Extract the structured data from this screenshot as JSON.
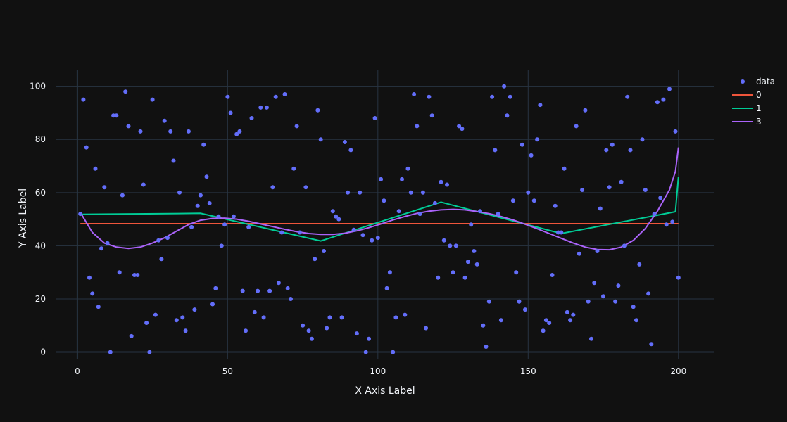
{
  "chart_data": {
    "type": "scatter",
    "title": "",
    "xlabel": "X Axis Label",
    "ylabel": "Y Axis Label",
    "xlim": [
      -7,
      212
    ],
    "ylim": [
      -2.5,
      106
    ],
    "x_ticks": [
      0,
      50,
      100,
      150,
      200
    ],
    "y_ticks": [
      0,
      20,
      40,
      60,
      80,
      100
    ],
    "grid": true,
    "legend_position": "top-right",
    "colors": {
      "background": "#111111",
      "grid": "#283442",
      "zeroline": "#283442",
      "text": "#f2f5fa"
    },
    "series": [
      {
        "name": "data",
        "mode": "markers",
        "color": "#636efa",
        "x": [
          1,
          2,
          3,
          4,
          5,
          6,
          7,
          8,
          9,
          10,
          11,
          12,
          13,
          14,
          15,
          16,
          17,
          18,
          19,
          20,
          21,
          22,
          23,
          24,
          25,
          26,
          27,
          28,
          29,
          30,
          31,
          32,
          33,
          34,
          35,
          36,
          37,
          38,
          39,
          40,
          41,
          42,
          43,
          44,
          45,
          46,
          47,
          48,
          49,
          50,
          51,
          52,
          53,
          54,
          55,
          56,
          57,
          58,
          59,
          60,
          61,
          62,
          63,
          64,
          65,
          66,
          67,
          68,
          69,
          70,
          71,
          72,
          73,
          74,
          75,
          76,
          77,
          78,
          79,
          80,
          81,
          82,
          83,
          84,
          85,
          86,
          87,
          88,
          89,
          90,
          91,
          92,
          93,
          94,
          95,
          96,
          97,
          98,
          99,
          100,
          101,
          102,
          103,
          104,
          105,
          106,
          107,
          108,
          109,
          110,
          111,
          112,
          113,
          114,
          115,
          116,
          117,
          118,
          119,
          120,
          121,
          122,
          123,
          124,
          125,
          126,
          127,
          128,
          129,
          130,
          131,
          132,
          133,
          134,
          135,
          136,
          137,
          138,
          139,
          140,
          141,
          142,
          143,
          144,
          145,
          146,
          147,
          148,
          149,
          150,
          151,
          152,
          153,
          154,
          155,
          156,
          157,
          158,
          159,
          160,
          161,
          162,
          163,
          164,
          165,
          166,
          167,
          168,
          169,
          170,
          171,
          172,
          173,
          174,
          175,
          176,
          177,
          178,
          179,
          180,
          181,
          182,
          183,
          184,
          185,
          186,
          187,
          188,
          189,
          190,
          191,
          192,
          193,
          194,
          195,
          196,
          197,
          198,
          199,
          200
        ],
        "y": [
          52,
          95,
          77,
          28,
          22,
          69,
          17,
          39,
          62,
          41,
          0,
          89,
          89,
          30,
          59,
          98,
          85,
          6,
          29,
          29,
          83,
          63,
          11,
          0,
          95,
          14,
          42,
          35,
          87,
          43,
          83,
          72,
          12,
          60,
          13,
          8,
          83,
          47,
          16,
          55,
          59,
          78,
          66,
          56,
          18,
          24,
          51,
          40,
          48,
          96,
          90,
          51,
          82,
          83,
          23,
          8,
          47,
          88,
          15,
          23,
          92,
          13,
          92,
          23,
          62,
          96,
          26,
          45,
          97,
          24,
          20,
          69,
          85,
          45,
          10,
          62,
          8,
          5,
          35,
          91,
          80,
          38,
          9,
          13,
          53,
          51,
          50,
          13,
          79,
          60,
          76,
          46,
          7,
          60,
          44,
          0,
          5,
          42,
          88,
          43,
          65,
          57,
          24,
          30,
          0,
          13,
          53,
          65,
          14,
          69,
          60,
          97,
          85,
          52,
          60,
          9,
          96,
          89,
          56,
          28,
          64,
          42,
          63,
          40,
          30,
          40,
          85,
          84,
          28,
          34,
          48,
          38,
          33,
          53,
          10,
          2,
          19,
          96,
          76,
          52,
          12,
          100,
          89,
          96,
          57,
          30,
          19,
          78,
          16,
          60,
          74,
          57,
          80,
          93,
          8,
          12,
          11,
          29,
          55,
          45,
          45,
          69,
          15,
          12,
          14,
          85,
          37,
          61,
          91,
          19,
          5,
          26,
          38,
          54,
          21,
          76,
          62,
          78,
          19,
          25,
          64,
          40,
          96,
          76,
          17,
          12,
          33,
          80,
          61,
          22,
          3,
          52,
          94,
          58,
          95,
          48,
          99,
          49,
          83,
          28
        ]
      },
      {
        "name": "0",
        "mode": "lines",
        "color": "#EF553B",
        "x": [
          1,
          200
        ],
        "y": [
          48.3,
          48.3
        ]
      },
      {
        "name": "1",
        "mode": "lines",
        "color": "#00cc96",
        "x": [
          1,
          41,
          81,
          121,
          161,
          199,
          200
        ],
        "y": [
          51.8,
          52.2,
          41.8,
          56.4,
          44.6,
          52.8,
          66
        ]
      },
      {
        "name": "3",
        "mode": "lines",
        "color": "#ab63fa",
        "x": [
          1,
          5,
          9,
          13,
          17,
          21,
          25,
          29,
          33,
          37,
          41,
          45,
          49,
          53,
          57,
          61,
          65,
          69,
          73,
          77,
          81,
          85,
          89,
          93,
          97,
          101,
          105,
          109,
          113,
          117,
          121,
          125,
          129,
          133,
          137,
          141,
          145,
          149,
          153,
          157,
          161,
          165,
          169,
          173,
          177,
          181,
          185,
          189,
          193,
          197,
          199,
          200
        ],
        "y": [
          52.5,
          45,
          41,
          39.5,
          39,
          39.5,
          41,
          43,
          45.5,
          48,
          49.6,
          50.3,
          50.4,
          50,
          49.2,
          48.2,
          47.2,
          46.2,
          45.3,
          44.6,
          44.3,
          44.3,
          44.7,
          45.6,
          46.8,
          48.2,
          49.7,
          51,
          52.2,
          53,
          53.5,
          53.7,
          53.5,
          52.9,
          52.1,
          51,
          49.7,
          48.1,
          46.4,
          44.6,
          42.8,
          41,
          39.5,
          38.6,
          38.5,
          39.5,
          42,
          46.5,
          53,
          61,
          68,
          77
        ]
      }
    ]
  }
}
